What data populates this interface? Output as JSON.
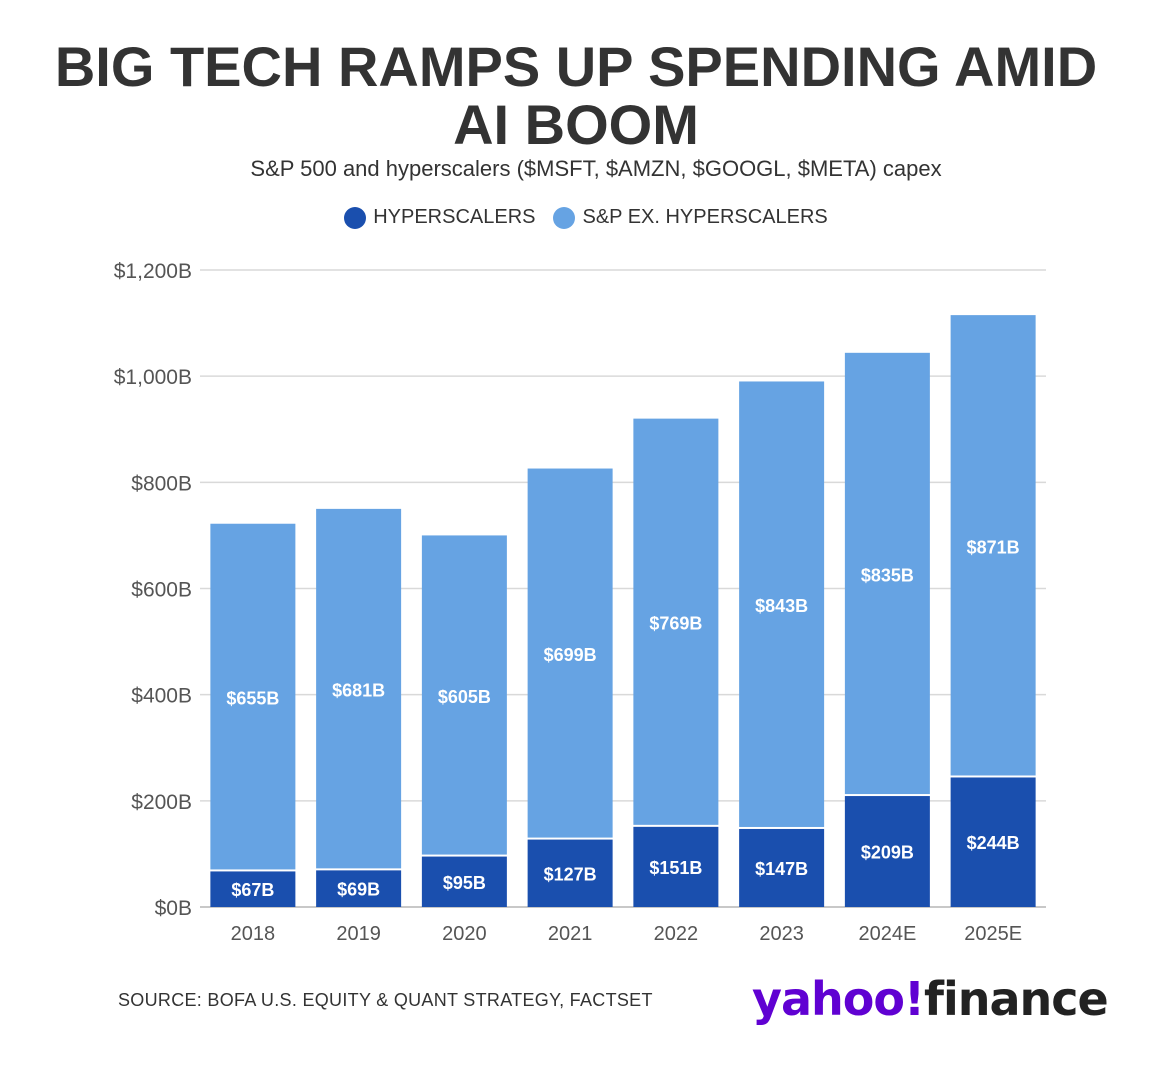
{
  "header": {
    "title_line1": "BIG TECH RAMPS UP SPENDING AMID",
    "title_line2": "AI BOOM",
    "subtitle": "S&P 500 and hyperscalers ($MSFT, $AMZN, $GOOGL, $META) capex"
  },
  "legend": {
    "items": [
      {
        "label": "HYPERSCALERS",
        "color": "#1a4fae"
      },
      {
        "label": "S&P EX. HYPERSCALERS",
        "color": "#66a3e3"
      }
    ]
  },
  "footer": {
    "source": "SOURCE: BOFA U.S. EQUITY & QUANT STRATEGY, FACTSET",
    "logo_yahoo": "yahoo!",
    "logo_finance": "finance"
  },
  "colors": {
    "hyperscalers": "#1a4fae",
    "sp_ex": "#66a3e3",
    "grid": "#d9d9d9",
    "axis_text": "#555555"
  },
  "chart_data": {
    "type": "bar",
    "stacked": true,
    "title": "BIG TECH RAMPS UP SPENDING AMID AI BOOM",
    "subtitle": "S&P 500 and hyperscalers ($MSFT, $AMZN, $GOOGL, $META) capex",
    "categories": [
      "2018",
      "2019",
      "2020",
      "2021",
      "2022",
      "2023",
      "2024E",
      "2025E"
    ],
    "series": [
      {
        "name": "HYPERSCALERS",
        "values": [
          67,
          69,
          95,
          127,
          151,
          147,
          209,
          244
        ],
        "labels": [
          "$67B",
          "$69B",
          "$95B",
          "$127B",
          "$151B",
          "$147B",
          "$209B",
          "$244B"
        ]
      },
      {
        "name": "S&P EX. HYPERSCALERS",
        "values": [
          655,
          681,
          605,
          699,
          769,
          843,
          835,
          871
        ],
        "labels": [
          "$655B",
          "$681B",
          "$605B",
          "$699B",
          "$769B",
          "$843B",
          "$835B",
          "$871B"
        ]
      }
    ],
    "ylim": [
      0,
      1200
    ],
    "yticks": [
      0,
      200,
      400,
      600,
      800,
      1000,
      1200
    ],
    "ytick_labels": [
      "$0B",
      "$200B",
      "$400B",
      "$600B",
      "$800B",
      "$1,000B",
      "$1,200B"
    ],
    "grid": true,
    "legend_position": "top-center"
  }
}
